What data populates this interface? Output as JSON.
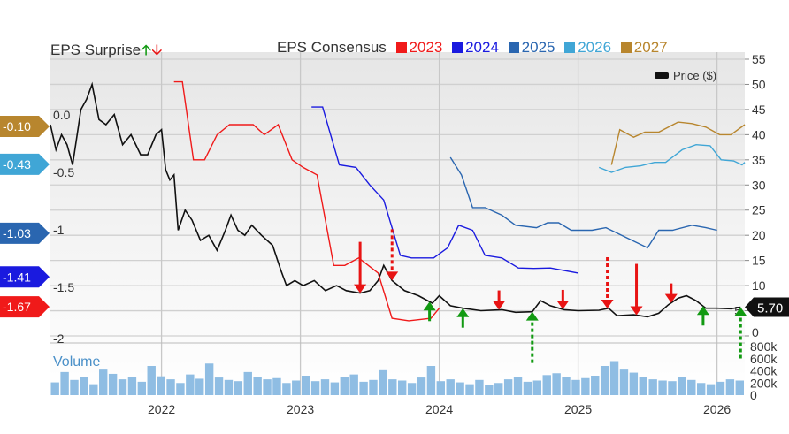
{
  "legend": {
    "surprise_label": "EPS Surprise",
    "consensus_label": "EPS Consensus",
    "price_label": "Price ($)",
    "volume_label": "Volume"
  },
  "colors": {
    "2023": "#f01a1a",
    "2024": "#1a1adf",
    "2025": "#2a66b0",
    "2026": "#40a6d6",
    "2027": "#b8862e",
    "price": "#111111",
    "volume": "#8fbde3",
    "up": "#129a12",
    "down": "#e81414"
  },
  "chart_data": {
    "type": "line",
    "x_ticks": [
      "2022",
      "2023",
      "2024",
      "2025",
      "2026"
    ],
    "xlim": [
      2021.2,
      2026.2
    ],
    "price_axis": {
      "ylim": [
        0,
        55
      ],
      "ticks": [
        "55",
        "50",
        "45",
        "40",
        "35",
        "30",
        "25",
        "20",
        "15",
        "10",
        "5",
        "0"
      ]
    },
    "surprise_axis": {
      "ylim": [
        -2,
        0
      ],
      "ticks": [
        "0.0",
        "-0.5",
        "-1",
        "-1.5",
        "-2"
      ]
    },
    "volume_axis": {
      "ylim": [
        0,
        800000
      ],
      "ticks": [
        "800k",
        "600k",
        "400k",
        "200k",
        "0"
      ]
    },
    "last_price": "5.70",
    "surprise_flags": [
      {
        "series": "2027",
        "value": "-0.10"
      },
      {
        "series": "2026",
        "value": "-0.43"
      },
      {
        "series": "2025",
        "value": "-1.03"
      },
      {
        "series": "2024",
        "value": "-1.41"
      },
      {
        "series": "2023",
        "value": "-1.67"
      }
    ],
    "series": [
      {
        "name": "Price ($)",
        "key": "price",
        "points": [
          [
            2021.2,
            42
          ],
          [
            2021.24,
            37
          ],
          [
            2021.28,
            40
          ],
          [
            2021.32,
            38
          ],
          [
            2021.36,
            34
          ],
          [
            2021.42,
            45
          ],
          [
            2021.46,
            47
          ],
          [
            2021.5,
            50
          ],
          [
            2021.55,
            43
          ],
          [
            2021.6,
            42
          ],
          [
            2021.66,
            44
          ],
          [
            2021.72,
            38
          ],
          [
            2021.78,
            40
          ],
          [
            2021.85,
            36
          ],
          [
            2021.9,
            36
          ],
          [
            2021.96,
            40
          ],
          [
            2022.0,
            41
          ],
          [
            2022.03,
            33
          ],
          [
            2022.06,
            31
          ],
          [
            2022.09,
            32
          ],
          [
            2022.12,
            21
          ],
          [
            2022.17,
            25
          ],
          [
            2022.22,
            23
          ],
          [
            2022.28,
            19
          ],
          [
            2022.34,
            20
          ],
          [
            2022.4,
            17
          ],
          [
            2022.46,
            21
          ],
          [
            2022.5,
            24
          ],
          [
            2022.55,
            21
          ],
          [
            2022.6,
            20
          ],
          [
            2022.65,
            22
          ],
          [
            2022.72,
            20
          ],
          [
            2022.8,
            18
          ],
          [
            2022.86,
            13
          ],
          [
            2022.9,
            10
          ],
          [
            2022.96,
            11
          ],
          [
            2023.02,
            10
          ],
          [
            2023.1,
            11
          ],
          [
            2023.18,
            9
          ],
          [
            2023.26,
            10
          ],
          [
            2023.33,
            9
          ],
          [
            2023.43,
            8.5
          ],
          [
            2023.5,
            9
          ],
          [
            2023.56,
            11
          ],
          [
            2023.6,
            14
          ],
          [
            2023.66,
            11
          ],
          [
            2023.75,
            9
          ],
          [
            2023.85,
            8
          ],
          [
            2023.95,
            6.5
          ],
          [
            2024.0,
            8
          ],
          [
            2024.08,
            6
          ],
          [
            2024.17,
            5.5
          ],
          [
            2024.3,
            5
          ],
          [
            2024.45,
            5.2
          ],
          [
            2024.55,
            4.7
          ],
          [
            2024.67,
            4.8
          ],
          [
            2024.73,
            7
          ],
          [
            2024.8,
            6
          ],
          [
            2024.9,
            5.2
          ],
          [
            2025.0,
            5
          ],
          [
            2025.15,
            5.1
          ],
          [
            2025.22,
            5.5
          ],
          [
            2025.28,
            4
          ],
          [
            2025.4,
            4.2
          ],
          [
            2025.5,
            3.8
          ],
          [
            2025.58,
            4.5
          ],
          [
            2025.65,
            6.2
          ],
          [
            2025.72,
            7.5
          ],
          [
            2025.78,
            8
          ],
          [
            2025.85,
            7
          ],
          [
            2025.92,
            5.5
          ],
          [
            2026.0,
            5.5
          ],
          [
            2026.1,
            5.4
          ],
          [
            2026.17,
            5.7
          ]
        ]
      },
      {
        "name": "2023",
        "key": "2023",
        "points": [
          [
            2022.09,
            50.5
          ],
          [
            2022.15,
            50.5
          ],
          [
            2022.23,
            35
          ],
          [
            2022.31,
            35
          ],
          [
            2022.4,
            40
          ],
          [
            2022.49,
            42
          ],
          [
            2022.66,
            42
          ],
          [
            2022.74,
            40
          ],
          [
            2022.84,
            42
          ],
          [
            2022.94,
            35
          ],
          [
            2023.02,
            33.5
          ],
          [
            2023.12,
            32
          ],
          [
            2023.24,
            14
          ],
          [
            2023.32,
            14
          ],
          [
            2023.42,
            15.5
          ],
          [
            2023.56,
            12.5
          ],
          [
            2023.66,
            3.5
          ],
          [
            2023.78,
            3
          ],
          [
            2023.94,
            3.5
          ],
          [
            2024.0,
            5.5
          ]
        ]
      },
      {
        "name": "2024",
        "key": "2024",
        "points": [
          [
            2023.08,
            45.5
          ],
          [
            2023.16,
            45.5
          ],
          [
            2023.28,
            34
          ],
          [
            2023.4,
            33.5
          ],
          [
            2023.5,
            30
          ],
          [
            2023.6,
            27
          ],
          [
            2023.72,
            16
          ],
          [
            2023.8,
            15.5
          ],
          [
            2023.96,
            15.5
          ],
          [
            2024.06,
            17.5
          ],
          [
            2024.14,
            22
          ],
          [
            2024.24,
            21
          ],
          [
            2024.33,
            16
          ],
          [
            2024.45,
            15.5
          ],
          [
            2024.57,
            13.5
          ],
          [
            2024.68,
            13.4
          ],
          [
            2024.8,
            13.5
          ],
          [
            2025.0,
            12.5
          ]
        ]
      },
      {
        "name": "2025",
        "key": "2025",
        "points": [
          [
            2024.08,
            35.5
          ],
          [
            2024.16,
            32
          ],
          [
            2024.24,
            25.5
          ],
          [
            2024.33,
            25.5
          ],
          [
            2024.45,
            24
          ],
          [
            2024.55,
            22
          ],
          [
            2024.7,
            21.5
          ],
          [
            2024.78,
            22.5
          ],
          [
            2024.86,
            22.5
          ],
          [
            2024.95,
            21
          ],
          [
            2025.1,
            21
          ],
          [
            2025.2,
            21.5
          ],
          [
            2025.35,
            19.5
          ],
          [
            2025.5,
            17.5
          ],
          [
            2025.58,
            21
          ],
          [
            2025.68,
            21
          ],
          [
            2025.82,
            22
          ],
          [
            2025.92,
            21.5
          ],
          [
            2026.0,
            21
          ]
        ]
      },
      {
        "name": "2026",
        "key": "2026",
        "points": [
          [
            2025.15,
            33.5
          ],
          [
            2025.24,
            32.5
          ],
          [
            2025.34,
            33.5
          ],
          [
            2025.45,
            33.8
          ],
          [
            2025.55,
            34.5
          ],
          [
            2025.63,
            34.5
          ],
          [
            2025.75,
            37
          ],
          [
            2025.85,
            38
          ],
          [
            2025.95,
            37.8
          ],
          [
            2026.03,
            35
          ],
          [
            2026.12,
            34.8
          ],
          [
            2026.18,
            34
          ],
          [
            2026.2,
            34.5
          ]
        ]
      },
      {
        "name": "2027",
        "key": "2027",
        "points": [
          [
            2025.24,
            34
          ],
          [
            2025.3,
            41
          ],
          [
            2025.4,
            39.5
          ],
          [
            2025.48,
            40.5
          ],
          [
            2025.58,
            40.5
          ],
          [
            2025.72,
            42.5
          ],
          [
            2025.82,
            42.2
          ],
          [
            2025.92,
            41.5
          ],
          [
            2026.02,
            40
          ],
          [
            2026.1,
            40
          ],
          [
            2026.2,
            42
          ]
        ]
      }
    ],
    "surprise_arrows": [
      {
        "date": 2023.43,
        "dir": "down",
        "dashed": false,
        "size": "large"
      },
      {
        "date": 2023.66,
        "dir": "down",
        "dashed": true,
        "size": "large"
      },
      {
        "date": 2023.93,
        "dir": "up",
        "dashed": false,
        "size": "small"
      },
      {
        "date": 2024.17,
        "dir": "up",
        "dashed": false,
        "size": "small"
      },
      {
        "date": 2024.43,
        "dir": "down",
        "dashed": false,
        "size": "small"
      },
      {
        "date": 2024.67,
        "dir": "up",
        "dashed": true,
        "size": "large"
      },
      {
        "date": 2024.89,
        "dir": "down",
        "dashed": false,
        "size": "small"
      },
      {
        "date": 2025.21,
        "dir": "down",
        "dashed": true,
        "size": "large"
      },
      {
        "date": 2025.42,
        "dir": "down",
        "dashed": false,
        "size": "large"
      },
      {
        "date": 2025.67,
        "dir": "down",
        "dashed": false,
        "size": "small"
      },
      {
        "date": 2025.9,
        "dir": "up",
        "dashed": false,
        "size": "small"
      },
      {
        "date": 2026.17,
        "dir": "up",
        "dashed": true,
        "size": "large"
      }
    ],
    "volume": [
      210,
      380,
      250,
      300,
      180,
      420,
      350,
      260,
      300,
      220,
      480,
      310,
      260,
      200,
      340,
      270,
      520,
      290,
      250,
      230,
      380,
      300,
      260,
      280,
      200,
      240,
      320,
      230,
      260,
      210,
      300,
      340,
      220,
      250,
      410,
      260,
      240,
      200,
      290,
      480,
      230,
      260,
      210,
      180,
      250,
      170,
      200,
      260,
      300,
      220,
      240,
      330,
      360,
      300,
      250,
      280,
      320,
      480,
      560,
      420,
      370,
      300,
      260,
      240,
      230,
      300,
      250,
      200,
      180,
      220,
      260,
      240
    ]
  }
}
